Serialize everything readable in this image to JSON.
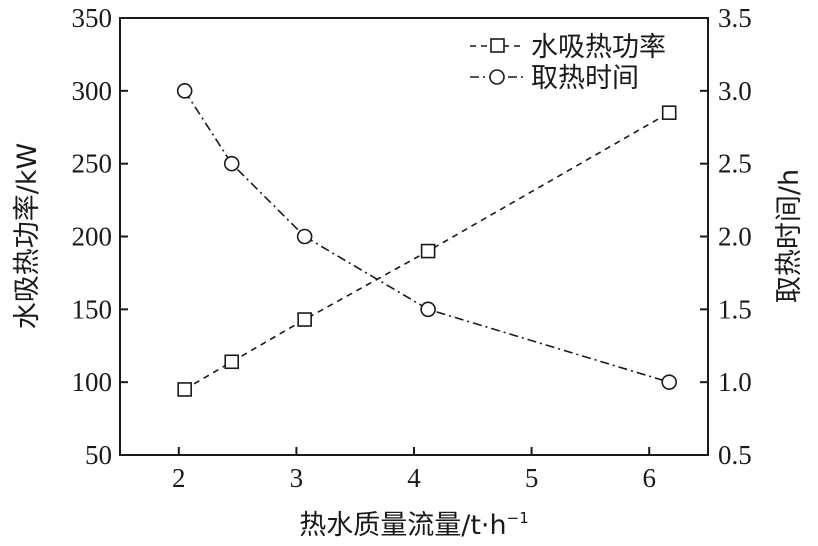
{
  "chart_data": {
    "type": "line",
    "xlabel": "热水质量流量/t·h",
    "xlabel_sup": "−1",
    "ylabel_left": "水吸热功率/kW",
    "ylabel_right": "取热时间/h",
    "xlim": [
      1.5,
      6.5
    ],
    "ylim_left": [
      50,
      350
    ],
    "ylim_right": [
      0.5,
      3.5
    ],
    "x_ticks": [
      "2",
      "3",
      "4",
      "5",
      "6"
    ],
    "y_left_ticks": [
      "50",
      "100",
      "150",
      "200",
      "250",
      "300",
      "350"
    ],
    "y_right_ticks": [
      "0.5",
      "1.0",
      "1.5",
      "2.0",
      "2.5",
      "3.0",
      "3.5"
    ],
    "legend_position": "top-right",
    "series": [
      {
        "name": "水吸热功率",
        "axis": "left",
        "marker": "square",
        "line_style": "dashed",
        "x": [
          2.05,
          2.45,
          3.07,
          4.12,
          6.17
        ],
        "values": [
          95,
          114,
          143,
          190,
          285
        ]
      },
      {
        "name": "取热时间",
        "axis": "right",
        "marker": "circle",
        "line_style": "dash-dot",
        "x": [
          2.05,
          2.45,
          3.07,
          4.12,
          6.17
        ],
        "values": [
          3.0,
          2.5,
          2.0,
          1.5,
          1.0
        ]
      }
    ]
  }
}
